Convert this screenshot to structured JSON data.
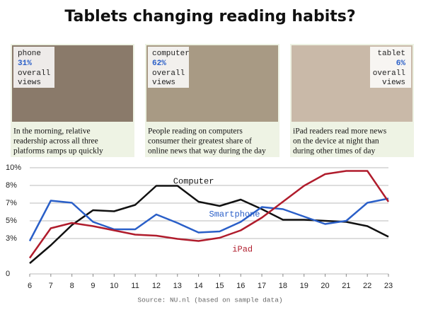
{
  "header": {
    "title": "Tablets changing reading habits?"
  },
  "panels": [
    {
      "device": "phone",
      "share": "31%",
      "line1": "overall",
      "line2": "views",
      "caption": [
        "In the morning, relative",
        "readership across all three",
        "platforms ramps up quickly"
      ]
    },
    {
      "device": "computer",
      "share": "62%",
      "line1": "overall",
      "line2": "views",
      "caption": [
        "People reading on computers",
        "consumer their greatest share of",
        "online news that way during the day"
      ]
    },
    {
      "device": "tablet",
      "share": "6%",
      "line1": "overall",
      "line2": "views",
      "caption": [
        "iPad readers read more news",
        "on the device at night than",
        "during other times of day"
      ]
    }
  ],
  "chart_data": {
    "type": "line",
    "x": [
      6,
      7,
      8,
      9,
      10,
      11,
      12,
      13,
      14,
      15,
      16,
      17,
      18,
      19,
      20,
      21,
      22,
      23
    ],
    "xlim": [
      6,
      23
    ],
    "xticks": [
      6,
      7,
      8,
      9,
      10,
      11,
      12,
      13,
      14,
      15,
      16,
      17,
      18,
      19,
      20,
      21,
      22,
      23
    ],
    "ylim": [
      0,
      10
    ],
    "yticks": [
      0,
      {
        "value": 3.33,
        "label": "3%"
      },
      {
        "value": 5,
        "label": "5%"
      },
      {
        "value": 6.67,
        "label": "7%"
      },
      {
        "value": 8.33,
        "label": "8%"
      },
      {
        "value": 10,
        "label": "10%"
      }
    ],
    "grid": true,
    "series": [
      {
        "name": "Computer",
        "color": "#111111",
        "values": [
          1.0,
          2.7,
          4.6,
          6.0,
          5.9,
          6.5,
          8.3,
          8.3,
          6.8,
          6.4,
          7.0,
          6.1,
          5.1,
          5.1,
          5.0,
          4.9,
          4.5,
          3.5
        ]
      },
      {
        "name": "Smartphone",
        "color": "#2a5fc8",
        "values": [
          3.1,
          6.9,
          6.7,
          4.9,
          4.2,
          4.2,
          5.6,
          4.8,
          3.9,
          4.0,
          4.9,
          6.3,
          6.1,
          5.4,
          4.7,
          5.0,
          6.7,
          7.1
        ]
      },
      {
        "name": "iPad",
        "color": "#b01c2c",
        "values": [
          1.5,
          4.3,
          4.8,
          4.5,
          4.1,
          3.7,
          3.6,
          3.3,
          3.1,
          3.4,
          4.1,
          5.3,
          6.8,
          8.3,
          9.4,
          9.7,
          9.7,
          6.8
        ]
      }
    ],
    "source": "Source: NU.nl (based on sample data)"
  }
}
